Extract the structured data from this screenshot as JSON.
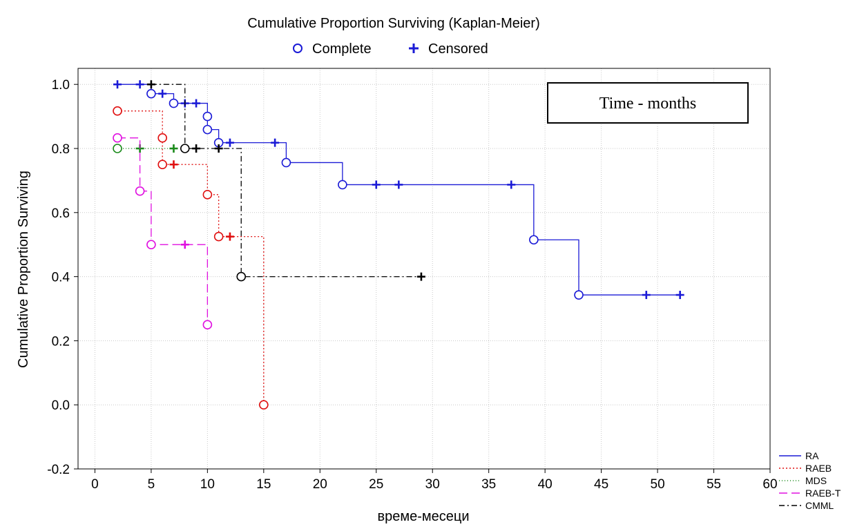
{
  "chart_data": {
    "type": "line",
    "title": "Cumulative Proportion Surviving (Kaplan-Meier)",
    "marker_legend": [
      {
        "name": "Complete",
        "marker": "circle",
        "color": "#1a1ad6"
      },
      {
        "name": "Censored",
        "marker": "plus",
        "color": "#1a1ad6"
      }
    ],
    "xlabel": "време-месеци",
    "ylabel": "Cumulative Proportion Surviving",
    "annotation": "Time - months",
    "xlim": [
      -1.5,
      60
    ],
    "ylim": [
      -0.2,
      1.05
    ],
    "x_ticks": [
      0,
      5,
      10,
      15,
      20,
      25,
      30,
      35,
      40,
      45,
      50,
      55,
      60
    ],
    "y_ticks": [
      -0.2,
      0.0,
      0.2,
      0.4,
      0.6,
      0.8,
      1.0
    ],
    "y_tick_labels": [
      "-0.2",
      "0.0",
      "0.2",
      "0.4",
      "0.6",
      "0.8",
      "1.0"
    ],
    "grid": true,
    "legend_position": "bottom-right",
    "series": [
      {
        "name": "RA",
        "color": "#1a1ad6",
        "dash": "",
        "steps": [
          [
            2,
            1.0
          ],
          [
            5,
            0.971
          ],
          [
            7,
            0.941
          ],
          [
            10,
            0.9
          ],
          [
            10,
            0.859
          ],
          [
            11,
            0.818
          ],
          [
            17,
            0.756
          ],
          [
            22,
            0.687
          ],
          [
            39,
            0.515
          ],
          [
            43,
            0.343
          ],
          [
            52,
            0.343
          ]
        ],
        "complete": [
          [
            5,
            0.971
          ],
          [
            7,
            0.941
          ],
          [
            10,
            0.9
          ],
          [
            10,
            0.859
          ],
          [
            11,
            0.818
          ],
          [
            17,
            0.756
          ],
          [
            22,
            0.687
          ],
          [
            39,
            0.515
          ],
          [
            43,
            0.343
          ]
        ],
        "censored": [
          [
            2,
            1.0
          ],
          [
            4,
            1.0
          ],
          [
            6,
            0.971
          ],
          [
            8,
            0.941
          ],
          [
            9,
            0.941
          ],
          [
            12,
            0.818
          ],
          [
            16,
            0.818
          ],
          [
            25,
            0.687
          ],
          [
            27,
            0.687
          ],
          [
            37,
            0.687
          ],
          [
            49,
            0.343
          ],
          [
            52,
            0.343
          ]
        ]
      },
      {
        "name": "RAEB",
        "color": "#e01010",
        "dash": "2,3",
        "steps": [
          [
            2,
            0.917
          ],
          [
            6,
            0.833
          ],
          [
            6,
            0.75
          ],
          [
            10,
            0.656
          ],
          [
            11,
            0.525
          ],
          [
            15,
            0.0
          ]
        ],
        "complete": [
          [
            2,
            0.917
          ],
          [
            6,
            0.833
          ],
          [
            6,
            0.75
          ],
          [
            10,
            0.656
          ],
          [
            11,
            0.525
          ],
          [
            15,
            0.0
          ]
        ],
        "censored": [
          [
            7,
            0.75
          ],
          [
            12,
            0.525
          ]
        ]
      },
      {
        "name": "MDS",
        "color": "#1a8a1a",
        "dash": "1,3",
        "steps": [
          [
            2,
            0.8
          ],
          [
            7,
            0.8
          ]
        ],
        "complete": [
          [
            2,
            0.8
          ]
        ],
        "censored": [
          [
            4,
            0.8
          ],
          [
            7,
            0.8
          ]
        ]
      },
      {
        "name": "RAEB-T",
        "color": "#e010e0",
        "dash": "12,6",
        "steps": [
          [
            2,
            0.833
          ],
          [
            4,
            0.667
          ],
          [
            5,
            0.5
          ],
          [
            10,
            0.25
          ]
        ],
        "complete": [
          [
            2,
            0.833
          ],
          [
            4,
            0.667
          ],
          [
            5,
            0.5
          ],
          [
            10,
            0.25
          ]
        ],
        "censored": [
          [
            8,
            0.5
          ]
        ]
      },
      {
        "name": "CMML",
        "color": "#000000",
        "dash": "8,4,2,4",
        "steps": [
          [
            5,
            1.0
          ],
          [
            8,
            0.8
          ],
          [
            13,
            0.4
          ],
          [
            29,
            0.4
          ]
        ],
        "complete": [
          [
            8,
            0.8
          ],
          [
            13,
            0.4
          ]
        ],
        "censored": [
          [
            5,
            1.0
          ],
          [
            9,
            0.8
          ],
          [
            11,
            0.8
          ],
          [
            29,
            0.4
          ]
        ]
      }
    ]
  }
}
